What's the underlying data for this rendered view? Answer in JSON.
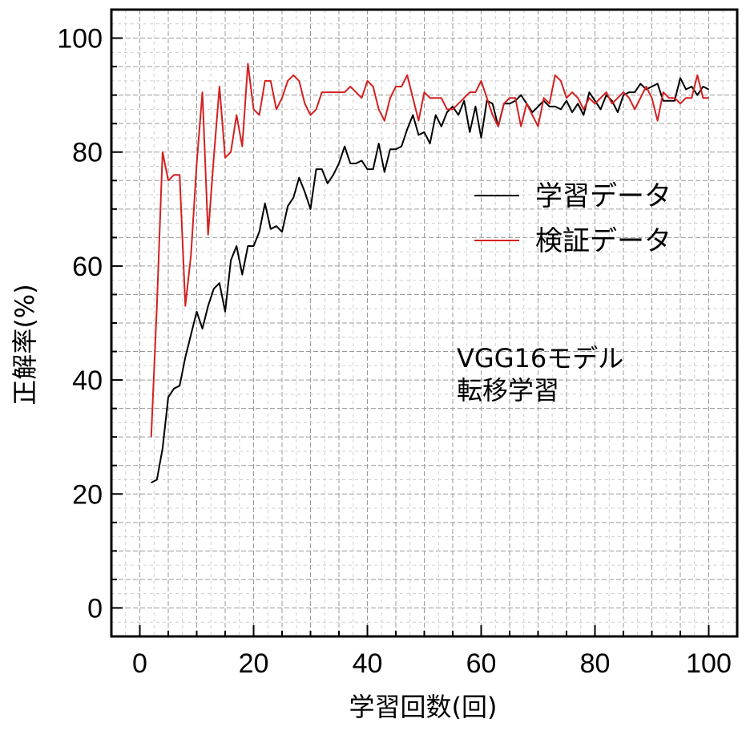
{
  "chart_data": {
    "type": "line",
    "xlabel": "学習回数(回)",
    "ylabel": "正解率(%)",
    "xlim": [
      -5,
      105
    ],
    "ylim": [
      -5,
      105
    ],
    "xticks": [
      0,
      20,
      40,
      60,
      80,
      100
    ],
    "yticks": [
      0,
      20,
      40,
      60,
      80,
      100
    ],
    "grid": true,
    "legend_position": "center-right",
    "annotation": [
      "VGG16モデル",
      "転移学習"
    ],
    "series": [
      {
        "name": "学習データ",
        "color": "#000000",
        "x": [
          2,
          3,
          4,
          5,
          6,
          7,
          8,
          9,
          10,
          11,
          12,
          13,
          14,
          15,
          16,
          17,
          18,
          19,
          20,
          21,
          22,
          23,
          24,
          25,
          26,
          27,
          28,
          29,
          30,
          31,
          32,
          33,
          34,
          35,
          36,
          37,
          38,
          39,
          40,
          41,
          42,
          43,
          44,
          45,
          46,
          47,
          48,
          49,
          50,
          51,
          52,
          53,
          54,
          55,
          56,
          57,
          58,
          59,
          60,
          61,
          62,
          63,
          64,
          65,
          66,
          67,
          68,
          69,
          70,
          71,
          72,
          73,
          74,
          75,
          76,
          77,
          78,
          79,
          80,
          81,
          82,
          83,
          84,
          85,
          86,
          87,
          88,
          89,
          90,
          91,
          92,
          93,
          94,
          95,
          96,
          97,
          98,
          99,
          100
        ],
        "values": [
          22,
          22.5,
          28,
          37,
          38.5,
          39,
          44,
          48,
          52,
          49,
          53,
          56,
          57,
          52,
          61,
          63.5,
          58.5,
          63.5,
          63.5,
          66,
          71,
          66.5,
          67,
          66,
          70.5,
          72,
          75.5,
          73,
          70,
          77,
          77,
          74.5,
          76,
          78,
          81,
          78,
          78,
          78.5,
          77,
          77,
          81.5,
          76.5,
          80.5,
          80.5,
          81,
          84,
          86.5,
          83,
          83.5,
          81.5,
          86.5,
          84.5,
          87,
          88,
          86.5,
          89,
          83.5,
          88,
          82.5,
          89,
          88.5,
          84.5,
          88.5,
          88.5,
          89,
          90,
          88.5,
          87,
          88,
          89,
          88,
          88,
          87.5,
          89,
          87,
          88.5,
          86.5,
          90.5,
          89,
          87.5,
          90,
          89,
          87,
          90,
          90.5,
          90.5,
          92,
          91,
          91.5,
          92,
          89,
          89,
          89,
          93,
          91,
          91.5,
          90,
          91.5,
          91
        ]
      },
      {
        "name": "検証データ",
        "color": "#d42020",
        "x": [
          2,
          3,
          4,
          5,
          6,
          7,
          8,
          9,
          10,
          11,
          12,
          13,
          14,
          15,
          16,
          17,
          18,
          19,
          20,
          21,
          22,
          23,
          24,
          25,
          26,
          27,
          28,
          29,
          30,
          31,
          32,
          33,
          34,
          35,
          36,
          37,
          38,
          39,
          40,
          41,
          42,
          43,
          44,
          45,
          46,
          47,
          48,
          49,
          50,
          51,
          52,
          53,
          54,
          55,
          56,
          57,
          58,
          59,
          60,
          61,
          62,
          63,
          64,
          65,
          66,
          67,
          68,
          69,
          70,
          71,
          72,
          73,
          74,
          75,
          76,
          77,
          78,
          79,
          80,
          81,
          82,
          83,
          84,
          85,
          86,
          87,
          88,
          89,
          90,
          91,
          92,
          93,
          94,
          95,
          96,
          97,
          98,
          99,
          100
        ],
        "values": [
          30,
          53,
          80,
          75,
          76,
          76,
          53,
          62,
          78,
          90.5,
          65.5,
          79,
          91.5,
          79,
          80,
          86.5,
          81,
          95.5,
          87.5,
          86.5,
          92.5,
          92.5,
          87.5,
          89.5,
          92.5,
          93.5,
          92.5,
          88.5,
          86.5,
          87.5,
          90.5,
          90.5,
          90.5,
          90.5,
          90.5,
          91.5,
          90.5,
          89.5,
          92.5,
          91.5,
          87.5,
          85.5,
          89.5,
          91.5,
          91.5,
          93.5,
          89.5,
          85.5,
          90.5,
          89.5,
          89.5,
          89.5,
          87.5,
          87.5,
          88.5,
          89.5,
          90.5,
          90.5,
          92.5,
          89.5,
          86.5,
          84.5,
          88.5,
          89.5,
          89.5,
          84.5,
          88.5,
          86.5,
          84.5,
          89.5,
          88.5,
          93.5,
          92.5,
          89.5,
          90.5,
          89.5,
          87.5,
          89.5,
          88.5,
          89.5,
          90.5,
          88.5,
          89.5,
          90.5,
          89.5,
          87.5,
          89.5,
          91.5,
          89.5,
          85.5,
          90.5,
          89.5,
          89.5,
          88.5,
          89.5,
          89.5,
          93.5,
          89.5,
          89.5
        ]
      }
    ]
  }
}
